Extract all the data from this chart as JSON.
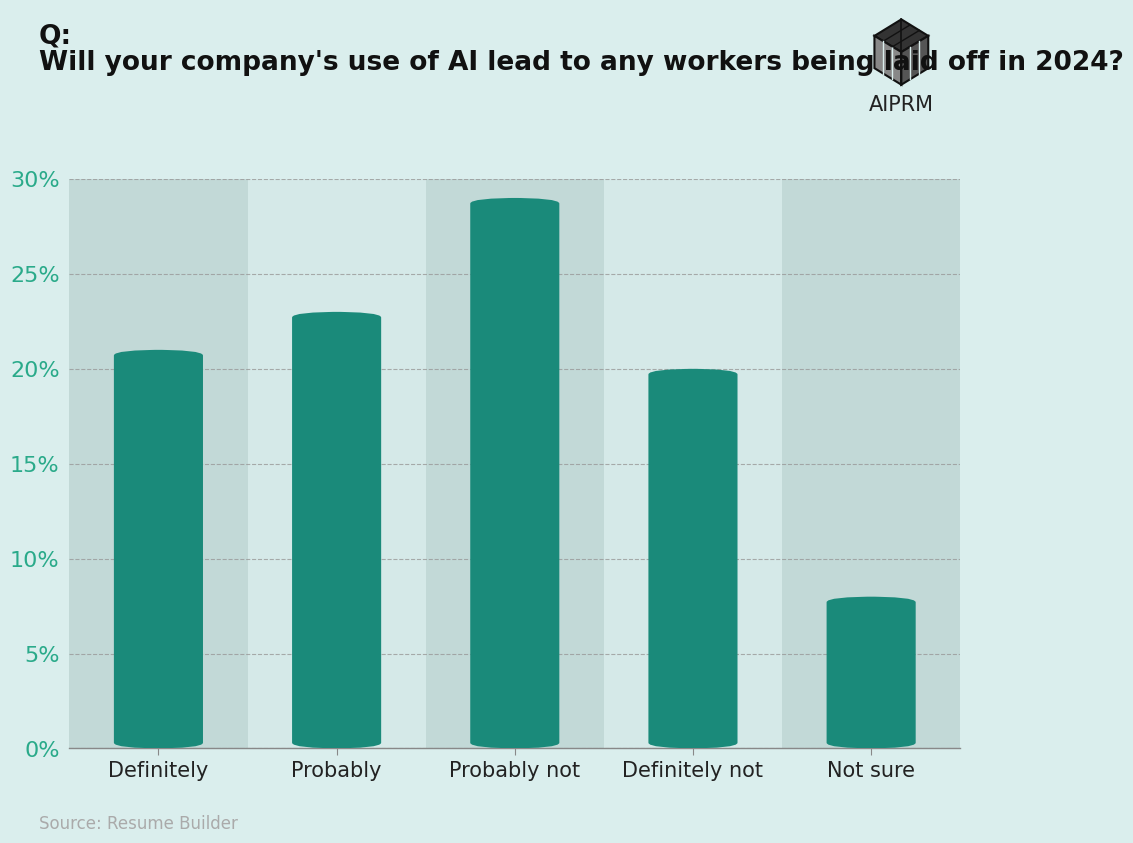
{
  "categories": [
    "Definitely",
    "Probably",
    "Probably not",
    "Definitely not",
    "Not sure"
  ],
  "values": [
    21.0,
    23.0,
    29.0,
    20.0,
    8.0
  ],
  "bar_color": "#1a8a7a",
  "background_color": "#daeeed",
  "column_bg_even": "#c2d9d7",
  "column_bg_odd": "#d5e9e8",
  "title_line1": "Q:",
  "title_line2": "Will your company's use of AI lead to any workers being laid off in 2024?",
  "source_text": "Source: Resume Builder",
  "ylim": [
    0,
    30
  ],
  "yticks": [
    0,
    5,
    10,
    15,
    20,
    25,
    30
  ],
  "ytick_labels": [
    "0%",
    "5%",
    "10%",
    "15%",
    "20%",
    "25%",
    "30%"
  ],
  "ylabel_color": "#2aaa8a",
  "grid_color": "#999999",
  "title_color": "#111111",
  "source_color": "#aaaaaa",
  "bar_width": 0.5,
  "logo_text": "AIPRM"
}
